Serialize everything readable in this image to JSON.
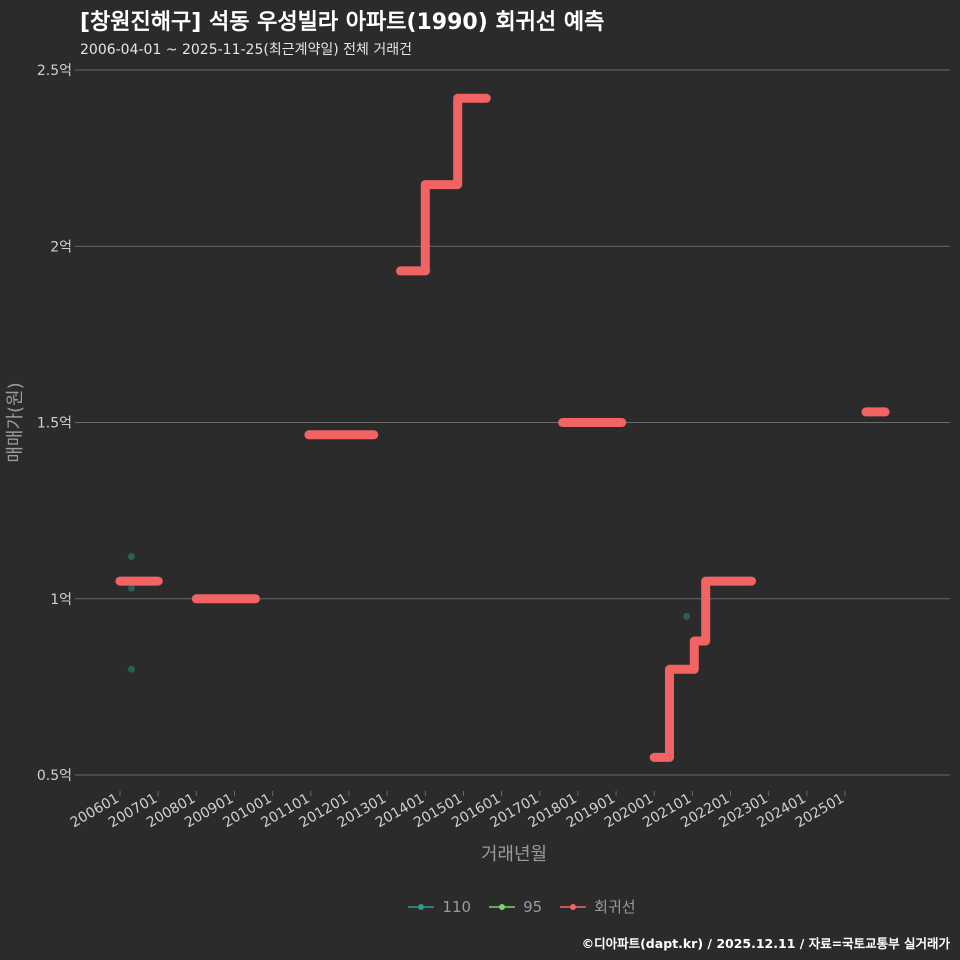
{
  "title": "[창원진해구] 석동 우성빌라 아파트(1990) 회귀선 예측",
  "subtitle": "2006-04-01 ~ 2025-11-25(최근계약일) 전체 거래건",
  "caption": "©디아파트(dapt.kr) / 2025.12.11 / 자료=국토교통부 실거래가",
  "colors": {
    "background": "#2b2b2c",
    "grid": "#6b6b6b",
    "axis_text": "#cfcfcf",
    "axis_title": "#9a9a9a",
    "s110": "#2a9d8f",
    "s95": "#7bd36b",
    "regression": "#f26464"
  },
  "chart_data": {
    "type": "line",
    "title": "[창원진해구] 석동 우성빌라 아파트(1990) 회귀선 예측",
    "xlabel": "거래년월",
    "ylabel": "매매가(원)",
    "ylim": [
      0.5,
      2.5
    ],
    "y_ticks": [
      0.5,
      1,
      1.5,
      2,
      2.5
    ],
    "y_tick_labels": [
      "0.5억",
      "1억",
      "1.5억",
      "2억",
      "2.5억"
    ],
    "x_tick_labels": [
      "200601",
      "200701",
      "200801",
      "200901",
      "201001",
      "201101",
      "201201",
      "201301",
      "201401",
      "201501",
      "201601",
      "201701",
      "201801",
      "201901",
      "202001",
      "202101",
      "202201",
      "202301",
      "202401",
      "202501"
    ],
    "x_range": [
      2005.0,
      2027.0
    ],
    "legend": [
      "110",
      "95",
      "회귀선"
    ],
    "series": [
      {
        "name": "110",
        "type": "scatter",
        "points": [
          [
            2006.3,
            1.12
          ],
          [
            2006.3,
            1.03
          ],
          [
            2006.3,
            0.8
          ],
          [
            2014.05,
            1.93
          ],
          [
            2020.85,
            0.95
          ]
        ]
      },
      {
        "name": "95",
        "type": "scatter",
        "points": [
          [
            2020.25,
            0.55
          ]
        ]
      },
      {
        "name": "회귀선",
        "type": "step",
        "segments": [
          [
            [
              2006.0,
              1.05
            ],
            [
              2007.0,
              1.05
            ]
          ],
          [
            [
              2008.0,
              1.0
            ],
            [
              2009.55,
              1.0
            ]
          ],
          [
            [
              2010.95,
              1.465
            ],
            [
              2012.65,
              1.465
            ]
          ],
          [
            [
              2013.35,
              1.93
            ],
            [
              2014.0,
              1.93
            ],
            [
              2014.0,
              2.175
            ],
            [
              2014.85,
              2.175
            ],
            [
              2014.85,
              2.42
            ],
            [
              2015.6,
              2.42
            ]
          ],
          [
            [
              2017.6,
              1.5
            ],
            [
              2019.15,
              1.5
            ]
          ],
          [
            [
              2020.0,
              0.55
            ],
            [
              2020.4,
              0.55
            ],
            [
              2020.4,
              0.8
            ],
            [
              2021.05,
              0.8
            ],
            [
              2021.05,
              0.88
            ],
            [
              2021.35,
              0.88
            ],
            [
              2021.35,
              1.05
            ],
            [
              2022.05,
              1.05
            ],
            [
              2022.05,
              1.05
            ],
            [
              2022.55,
              1.05
            ]
          ],
          [
            [
              2025.55,
              1.53
            ],
            [
              2026.05,
              1.53
            ]
          ]
        ]
      }
    ]
  }
}
